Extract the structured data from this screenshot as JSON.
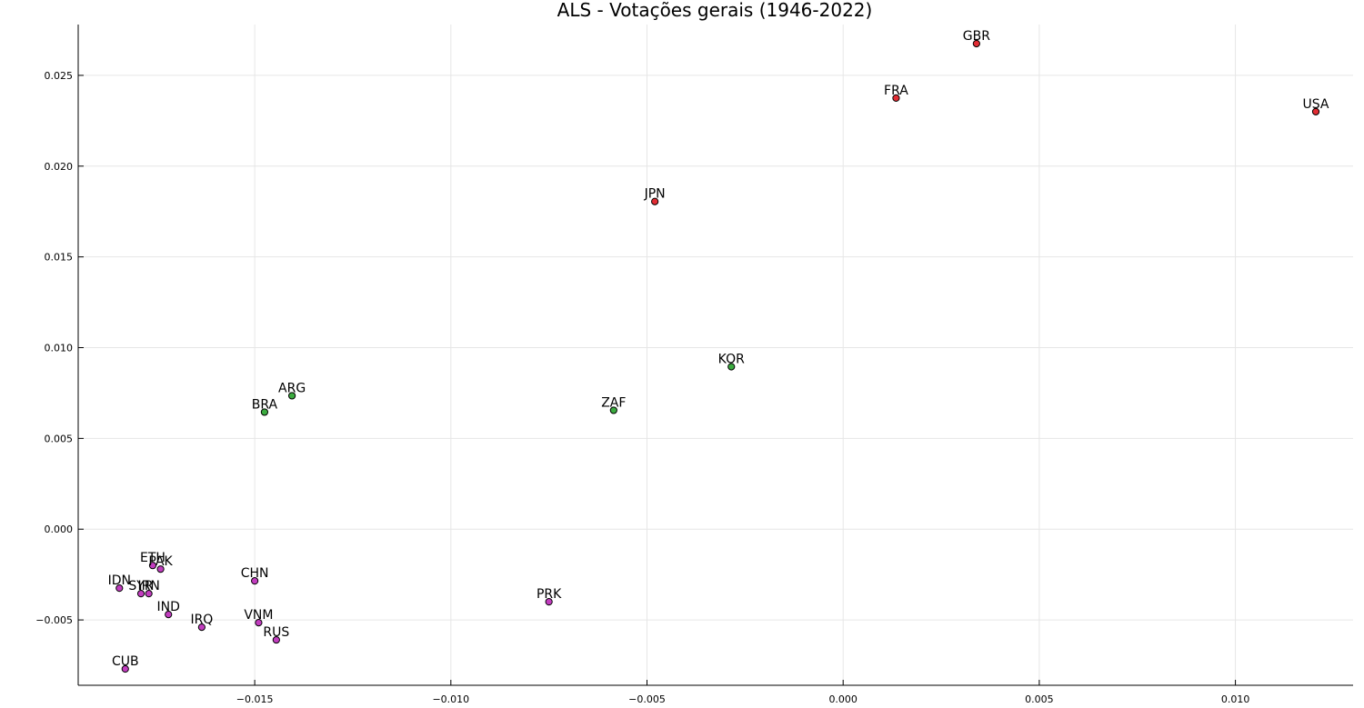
{
  "chart_data": {
    "type": "scatter",
    "title": "ALS - Votações gerais (1946-2022)",
    "xlabel": "",
    "ylabel": "",
    "xlim": [
      -0.0195,
      0.013
    ],
    "ylim": [
      -0.0086,
      0.0278
    ],
    "grid": true,
    "legend": "none",
    "x_ticks": [
      {
        "value": -0.015,
        "label": "−0.015"
      },
      {
        "value": -0.01,
        "label": "−0.010"
      },
      {
        "value": -0.005,
        "label": "−0.005"
      },
      {
        "value": 0.0,
        "label": "0.000"
      },
      {
        "value": 0.005,
        "label": "0.005"
      },
      {
        "value": 0.01,
        "label": "0.010"
      }
    ],
    "y_ticks": [
      {
        "value": -0.005,
        "label": "−0.005"
      },
      {
        "value": 0.0,
        "label": "0.000"
      },
      {
        "value": 0.005,
        "label": "0.005"
      },
      {
        "value": 0.01,
        "label": "0.010"
      },
      {
        "value": 0.015,
        "label": "0.015"
      },
      {
        "value": 0.02,
        "label": "0.020"
      },
      {
        "value": 0.025,
        "label": "0.025"
      }
    ],
    "colors": {
      "red": "#e22d34",
      "green": "#3bab3f",
      "magenta": "#c23dbf"
    },
    "points": [
      {
        "label": "GBR",
        "x": 0.0034,
        "y": 0.02675,
        "group": "red"
      },
      {
        "label": "FRA",
        "x": 0.00135,
        "y": 0.02375,
        "group": "red"
      },
      {
        "label": "USA",
        "x": 0.01205,
        "y": 0.023,
        "group": "red"
      },
      {
        "label": "JPN",
        "x": -0.0048,
        "y": 0.01805,
        "group": "red"
      },
      {
        "label": "KOR",
        "x": -0.00285,
        "y": 0.00895,
        "group": "green"
      },
      {
        "label": "ZAF",
        "x": -0.00585,
        "y": 0.00655,
        "group": "green"
      },
      {
        "label": "ARG",
        "x": -0.01405,
        "y": 0.00735,
        "group": "green"
      },
      {
        "label": "BRA",
        "x": -0.01475,
        "y": 0.00645,
        "group": "green"
      },
      {
        "label": "CHN",
        "x": -0.015,
        "y": -0.00285,
        "group": "magenta"
      },
      {
        "label": "PRK",
        "x": -0.0075,
        "y": -0.004,
        "group": "magenta"
      },
      {
        "label": "ETH",
        "x": -0.0176,
        "y": -0.002,
        "group": "magenta"
      },
      {
        "label": "PAK",
        "x": -0.0174,
        "y": -0.0022,
        "group": "magenta"
      },
      {
        "label": "IDN",
        "x": -0.01845,
        "y": -0.00325,
        "group": "magenta"
      },
      {
        "label": "SYR",
        "x": -0.0179,
        "y": -0.00355,
        "group": "magenta"
      },
      {
        "label": "IRN",
        "x": -0.0177,
        "y": -0.00355,
        "group": "magenta"
      },
      {
        "label": "IND",
        "x": -0.0172,
        "y": -0.0047,
        "group": "magenta"
      },
      {
        "label": "IRQ",
        "x": -0.01635,
        "y": -0.0054,
        "group": "magenta"
      },
      {
        "label": "VNM",
        "x": -0.0149,
        "y": -0.00515,
        "group": "magenta"
      },
      {
        "label": "RUS",
        "x": -0.01445,
        "y": -0.0061,
        "group": "magenta"
      },
      {
        "label": "CUB",
        "x": -0.0183,
        "y": -0.0077,
        "group": "magenta"
      }
    ]
  }
}
